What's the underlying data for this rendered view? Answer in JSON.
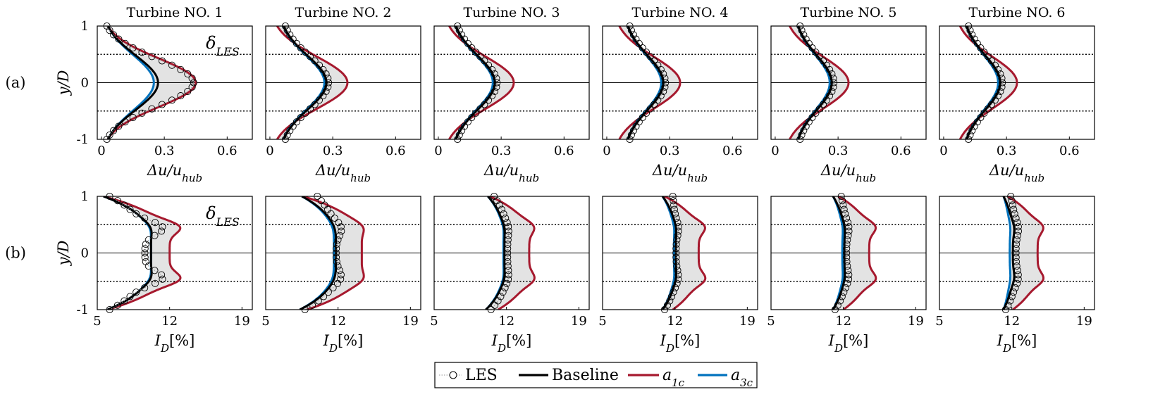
{
  "chart_data": {
    "type": "line",
    "description_rows": [
      "(a)",
      "(b)"
    ],
    "titles": [
      "Turbine NO. 1",
      "Turbine NO. 2",
      "Turbine NO. 3",
      "Turbine NO. 4",
      "Turbine NO. 5",
      "Turbine NO. 6"
    ],
    "ylabel": "y/D",
    "yticks": [
      "1",
      "0",
      "-1"
    ],
    "ylim": [
      -1,
      1
    ],
    "reference_lines": {
      "solid": [
        0
      ],
      "dotted": [
        0.5,
        -0.5
      ]
    },
    "annotation": "δ_LES",
    "legend": {
      "position": "bottom-center",
      "entries": [
        {
          "label": "LES",
          "color": "#888888",
          "style": "dotted-circles"
        },
        {
          "label": "Baseline",
          "color": "#000000",
          "style": "solid"
        },
        {
          "label": "a_1c",
          "color": "#a6192e",
          "style": "solid"
        },
        {
          "label": "a_3c",
          "color": "#0072bd",
          "style": "solid"
        }
      ]
    },
    "rows": [
      {
        "row_label": "(a)",
        "xlabel": "Δu/u_hub",
        "xlim": [
          -0.02,
          0.72
        ],
        "xticks": [
          0,
          0.3,
          0.6
        ],
        "xtick_labels": [
          "0",
          "0.3",
          "0.6"
        ],
        "panels": [
          {
            "turbine": 1,
            "les": {
              "left": 0.0,
              "peak": 0.44,
              "right": 0.0,
              "sigma": 0.42
            },
            "baseline": {
              "edge": 0.0,
              "peak": 0.27,
              "sigma": 0.48
            },
            "a1c": {
              "edge": 0.0,
              "peak": 0.45,
              "sigma": 0.43
            },
            "a3c": {
              "edge": 0.0,
              "peak": 0.25,
              "sigma": 0.49
            }
          },
          {
            "turbine": 2,
            "les": {
              "left": 0.05,
              "peak": 0.28,
              "right": 0.05,
              "sigma": 0.47
            },
            "baseline": {
              "edge": 0.04,
              "peak": 0.27,
              "sigma": 0.48
            },
            "a1c": {
              "edge": 0.0,
              "peak": 0.37,
              "sigma": 0.46
            },
            "a3c": {
              "edge": 0.04,
              "peak": 0.26,
              "sigma": 0.48
            }
          },
          {
            "turbine": 3,
            "les": {
              "left": 0.07,
              "peak": 0.28,
              "right": 0.07,
              "sigma": 0.47
            },
            "baseline": {
              "edge": 0.06,
              "peak": 0.27,
              "sigma": 0.48
            },
            "a1c": {
              "edge": 0.02,
              "peak": 0.36,
              "sigma": 0.46
            },
            "a3c": {
              "edge": 0.06,
              "peak": 0.26,
              "sigma": 0.48
            }
          },
          {
            "turbine": 4,
            "les": {
              "left": 0.09,
              "peak": 0.28,
              "right": 0.09,
              "sigma": 0.47
            },
            "baseline": {
              "edge": 0.08,
              "peak": 0.27,
              "sigma": 0.48
            },
            "a1c": {
              "edge": 0.03,
              "peak": 0.35,
              "sigma": 0.46
            },
            "a3c": {
              "edge": 0.08,
              "peak": 0.26,
              "sigma": 0.48
            }
          },
          {
            "turbine": 5,
            "les": {
              "left": 0.1,
              "peak": 0.28,
              "right": 0.1,
              "sigma": 0.47
            },
            "baseline": {
              "edge": 0.09,
              "peak": 0.27,
              "sigma": 0.48
            },
            "a1c": {
              "edge": 0.04,
              "peak": 0.35,
              "sigma": 0.46
            },
            "a3c": {
              "edge": 0.09,
              "peak": 0.26,
              "sigma": 0.48
            }
          },
          {
            "turbine": 6,
            "les": {
              "left": 0.1,
              "peak": 0.28,
              "right": 0.1,
              "sigma": 0.47
            },
            "baseline": {
              "edge": 0.09,
              "peak": 0.27,
              "sigma": 0.48
            },
            "a1c": {
              "edge": 0.05,
              "peak": 0.35,
              "sigma": 0.46
            },
            "a3c": {
              "edge": 0.09,
              "peak": 0.26,
              "sigma": 0.48
            }
          }
        ]
      },
      {
        "row_label": "(b)",
        "xlabel": "I_D[%]",
        "xlim": [
          5,
          20
        ],
        "xticks": [
          5,
          12,
          19
        ],
        "xtick_labels": [
          "5",
          "12",
          "19"
        ],
        "panels": [
          {
            "turbine": 1,
            "les": {
              "top": 6.2,
              "bottom": 6.2,
              "mid": 9.6,
              "shoulder": 11.7,
              "mid_y": 0.45,
              "width": 0.17
            },
            "baseline": {
              "top": 5.6,
              "bottom": 6.0,
              "mid": 10.2,
              "shoulder": 10.5,
              "mid_y": 0.45,
              "width": 0.17
            },
            "a1c": {
              "top": 5.6,
              "bottom": 6.0,
              "mid": 12.0,
              "shoulder": 13.6,
              "mid_y": 0.47,
              "width": 0.16
            },
            "a3c": {
              "top": 5.6,
              "bottom": 6.0,
              "mid": 10.2,
              "shoulder": 10.4,
              "mid_y": 0.45,
              "width": 0.17
            }
          },
          {
            "turbine": 2,
            "les": {
              "top": 10.0,
              "bottom": 8.8,
              "mid": 11.8,
              "shoulder": 12.5,
              "mid_y": 0.45,
              "width": 0.2
            },
            "baseline": {
              "top": 8.5,
              "bottom": 8.3,
              "mid": 11.8,
              "shoulder": 11.9,
              "mid_y": 0.45,
              "width": 0.18
            },
            "a1c": {
              "top": 8.6,
              "bottom": 9.0,
              "mid": 14.3,
              "shoulder": 14.9,
              "mid_y": 0.47,
              "width": 0.16
            },
            "a3c": {
              "top": 8.5,
              "bottom": 8.3,
              "mid": 11.6,
              "shoulder": 11.7,
              "mid_y": 0.45,
              "width": 0.18
            }
          },
          {
            "turbine": 3,
            "les": {
              "top": 10.8,
              "bottom": 10.5,
              "mid": 12.1,
              "shoulder": 12.3,
              "mid_y": 0.45,
              "width": 0.2
            },
            "baseline": {
              "top": 10.2,
              "bottom": 10.0,
              "mid": 11.8,
              "shoulder": 11.9,
              "mid_y": 0.45,
              "width": 0.18
            },
            "a1c": {
              "top": 10.4,
              "bottom": 11.2,
              "mid": 14.2,
              "shoulder": 15.0,
              "mid_y": 0.47,
              "width": 0.16
            },
            "a3c": {
              "top": 10.2,
              "bottom": 10.0,
              "mid": 11.7,
              "shoulder": 11.8,
              "mid_y": 0.45,
              "width": 0.18
            }
          },
          {
            "turbine": 4,
            "les": {
              "top": 11.8,
              "bottom": 11.0,
              "mid": 12.1,
              "shoulder": 12.4,
              "mid_y": 0.45,
              "width": 0.2
            },
            "baseline": {
              "top": 10.8,
              "bottom": 10.8,
              "mid": 12.1,
              "shoulder": 12.2,
              "mid_y": 0.45,
              "width": 0.18
            },
            "a1c": {
              "top": 11.0,
              "bottom": 11.8,
              "mid": 14.3,
              "shoulder": 15.2,
              "mid_y": 0.47,
              "width": 0.16
            },
            "a3c": {
              "top": 10.8,
              "bottom": 10.8,
              "mid": 11.9,
              "shoulder": 12.0,
              "mid_y": 0.45,
              "width": 0.18
            }
          },
          {
            "turbine": 5,
            "les": {
              "top": 11.8,
              "bottom": 11.2,
              "mid": 12.3,
              "shoulder": 12.6,
              "mid_y": 0.45,
              "width": 0.2
            },
            "baseline": {
              "top": 11.0,
              "bottom": 11.0,
              "mid": 12.1,
              "shoulder": 12.2,
              "mid_y": 0.45,
              "width": 0.18
            },
            "a1c": {
              "top": 11.5,
              "bottom": 12.0,
              "mid": 14.5,
              "shoulder": 15.4,
              "mid_y": 0.47,
              "width": 0.16
            },
            "a3c": {
              "top": 11.0,
              "bottom": 11.0,
              "mid": 11.9,
              "shoulder": 12.0,
              "mid_y": 0.45,
              "width": 0.18
            }
          },
          {
            "turbine": 6,
            "les": {
              "top": 11.9,
              "bottom": 11.4,
              "mid": 12.4,
              "shoulder": 12.7,
              "mid_y": 0.45,
              "width": 0.2
            },
            "baseline": {
              "top": 11.2,
              "bottom": 11.2,
              "mid": 12.1,
              "shoulder": 12.3,
              "mid_y": 0.45,
              "width": 0.18
            },
            "a1c": {
              "top": 11.6,
              "bottom": 12.1,
              "mid": 14.5,
              "shoulder": 15.3,
              "mid_y": 0.47,
              "width": 0.16
            },
            "a3c": {
              "top": 11.2,
              "bottom": 11.2,
              "mid": 11.8,
              "shoulder": 11.9,
              "mid_y": 0.45,
              "width": 0.18
            }
          }
        ]
      }
    ]
  }
}
